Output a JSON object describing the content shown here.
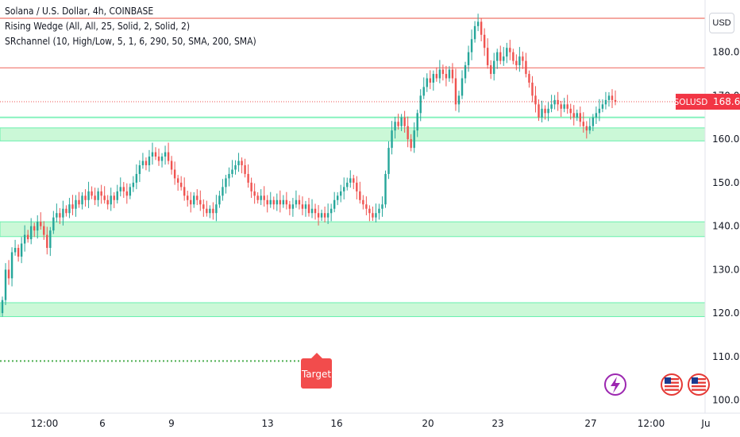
{
  "header": {
    "title": "Solana / U.S. Dollar, 4h, COINBASE",
    "indicator_1": "Rising Wedge (All, All, 25, Solid, 2, Solid, 2)",
    "indicator_2": "SRchannel (10, High/Low, 5, 1, 6, 290, 50, SMA, 200, SMA)"
  },
  "currency_button": "USD",
  "price_label": {
    "symbol": "SOLUSD",
    "value": "168.61"
  },
  "target_label": "Target",
  "colors": {
    "up": "#26a69a",
    "down": "#ef5350",
    "zone": "#b9f6ca",
    "zone_edge": "#69f0ae",
    "resistance": "#f28b82",
    "target_line": "#4caf50"
  },
  "icons": [
    "lightning-icon",
    "us-flag-icon",
    "us-flag-icon"
  ],
  "chart_data": {
    "type": "candlestick",
    "y_axis": {
      "min": 97,
      "max": 192,
      "ticks": [
        "180.00",
        "170.00",
        "160.00",
        "150.00",
        "140.00",
        "130.00",
        "120.00",
        "110.00",
        "100.00"
      ]
    },
    "x_ticks": [
      "12:00",
      "6",
      "9",
      "13",
      "16",
      "20",
      "23",
      "27",
      "12:00",
      "Ju"
    ],
    "support_zones": [
      [
        159.6,
        162.6
      ],
      [
        137.6,
        141.0
      ],
      [
        119.2,
        122.4
      ]
    ],
    "support_line": 165.0,
    "resistance_lines": [
      187.8,
      176.4
    ],
    "current_price": 168.61,
    "target_level": 109.0,
    "closes": [
      123,
      130,
      128,
      134,
      135,
      133,
      136,
      138,
      137,
      140,
      139,
      141,
      140,
      138,
      135,
      139,
      142,
      143,
      142,
      144,
      143,
      145,
      144,
      146,
      145,
      147,
      146,
      148,
      147,
      146,
      148,
      147,
      146,
      145,
      147,
      146,
      148,
      149,
      148,
      147,
      149,
      150,
      152,
      154,
      155,
      154,
      156,
      157,
      156,
      155,
      156,
      157,
      155,
      153,
      151,
      150,
      149,
      147,
      146,
      145,
      147,
      146,
      145,
      144,
      143,
      144,
      143,
      145,
      147,
      149,
      151,
      152,
      153,
      154,
      155,
      154,
      152,
      150,
      148,
      147,
      146,
      147,
      146,
      145,
      146,
      145,
      146,
      145,
      146,
      145,
      144,
      145,
      146,
      145,
      144,
      145,
      143,
      144,
      143,
      142,
      143,
      142,
      143,
      144,
      146,
      147,
      148,
      149,
      150,
      151,
      150,
      148,
      146,
      145,
      144,
      143,
      142,
      143,
      144,
      145,
      152,
      158,
      162,
      164,
      163,
      165,
      163,
      160,
      158,
      162,
      166,
      170,
      172,
      174,
      173,
      175,
      174,
      176,
      175,
      174,
      176,
      174,
      168,
      170,
      174,
      177,
      180,
      183,
      186,
      187,
      184,
      181,
      177,
      175,
      178,
      180,
      178,
      179,
      181,
      180,
      178,
      177,
      179,
      178,
      175,
      173,
      170,
      168,
      165,
      167,
      166,
      167,
      168,
      169,
      168,
      167,
      168,
      167,
      166,
      165,
      166,
      164,
      163,
      162,
      163,
      165,
      166,
      167,
      168,
      169,
      170,
      169,
      168.61
    ]
  }
}
